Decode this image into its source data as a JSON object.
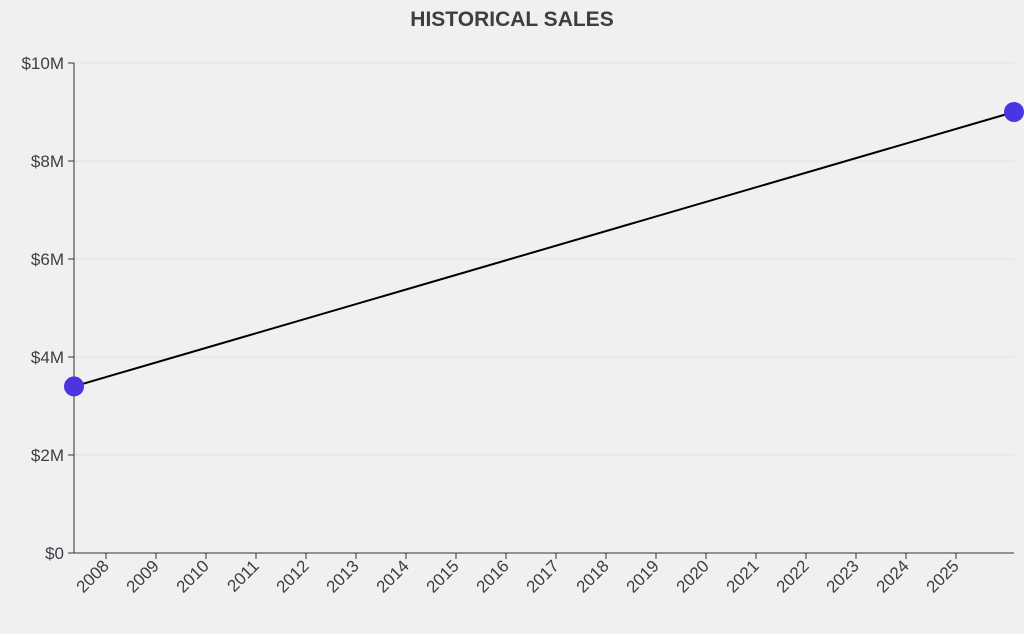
{
  "chart_data": {
    "type": "line",
    "title": "HISTORICAL SALES",
    "xlabel": "",
    "ylabel": "",
    "x_ticks": [
      "2008",
      "2009",
      "2010",
      "2011",
      "2012",
      "2013",
      "2014",
      "2015",
      "2016",
      "2017",
      "2018",
      "2019",
      "2020",
      "2021",
      "2022",
      "2023",
      "2024",
      "2025"
    ],
    "y_ticks": [
      "$0",
      "$2M",
      "$4M",
      "$6M",
      "$8M",
      "$10M"
    ],
    "y_tick_values": [
      0,
      2000000,
      4000000,
      6000000,
      8000000,
      10000000
    ],
    "ylim": [
      0,
      10000000
    ],
    "xlim": [
      2007.36,
      2026.16
    ],
    "grid": true,
    "series": [
      {
        "name": "Sales",
        "x": [
          2007.36,
          2026.16
        ],
        "values": [
          3400000,
          9000000
        ]
      }
    ],
    "colors": {
      "line": "#000000",
      "point": "#4a35e0",
      "grid": "#e2e2e2",
      "axis": "#333333",
      "text": "#3a3f44"
    }
  }
}
